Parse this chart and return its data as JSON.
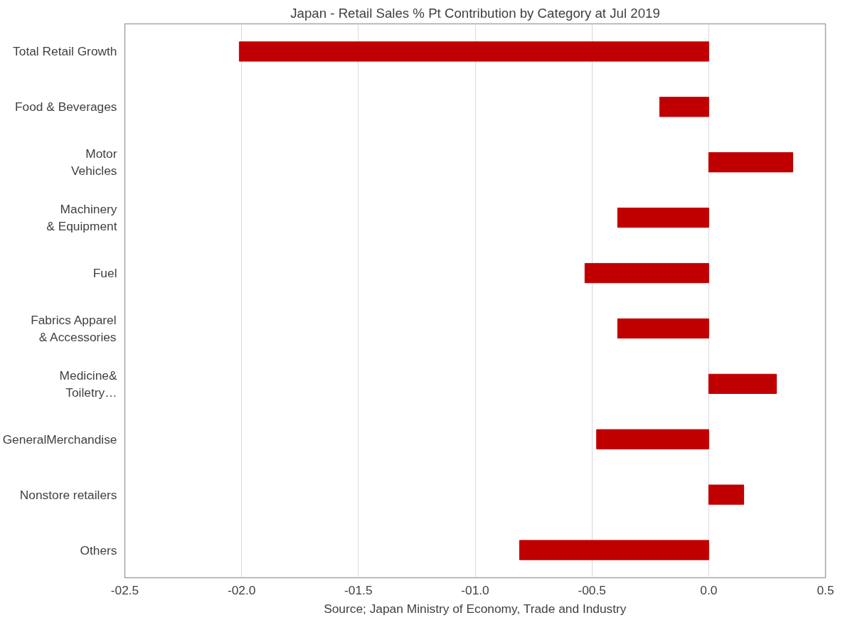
{
  "chart_data": {
    "type": "bar",
    "orientation": "horizontal",
    "title": "Japan - Retail Sales % Pt Contribution by Category at Jul 2019",
    "categories": [
      "Total Retail Growth",
      "Food & Beverages",
      "Motor\nVehicles",
      "Machinery\n& Equipment",
      "Fuel",
      "Fabrics Apparel\n& Accessories",
      "Medicine&\nToiletry…",
      "GeneralMerchandise",
      "Nonstore retailers",
      "Others"
    ],
    "values": [
      -2.01,
      -0.21,
      0.36,
      -0.39,
      -0.53,
      -0.39,
      0.29,
      -0.48,
      0.15,
      -0.81
    ],
    "color": "#c00000",
    "xlim": [
      -2.5,
      0.5
    ],
    "xticks": [
      {
        "value": -2.5,
        "label": "-02.5"
      },
      {
        "value": -2.0,
        "label": "-02.0"
      },
      {
        "value": -1.5,
        "label": "-01.5"
      },
      {
        "value": -1.0,
        "label": "-01.0"
      },
      {
        "value": -0.5,
        "label": "-00.5"
      },
      {
        "value": 0.0,
        "label": "0.0"
      },
      {
        "value": 0.5,
        "label": "0.5"
      }
    ],
    "grid": "x",
    "annotations": [
      "Source; Japan Ministry of Economy, Trade and Industry"
    ]
  }
}
